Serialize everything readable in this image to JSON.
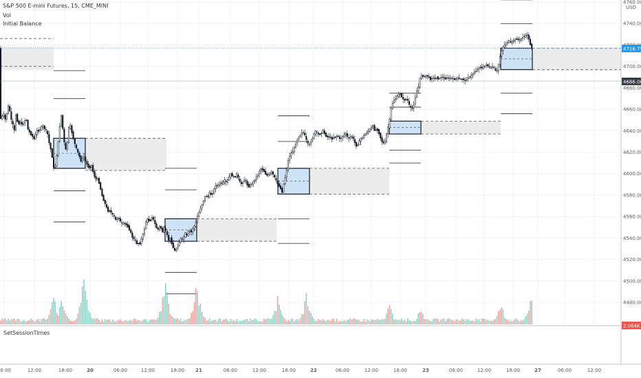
{
  "legend": {
    "symbol_line": "S&P 500 E-mini Futures, 15, CME_MINI",
    "vol_label": "Vol",
    "indicator_label": "Initial Balance"
  },
  "lower_pane": {
    "label": "SetSessionTimes"
  },
  "price_axis": {
    "currency": "USD",
    "ticks": [
      "4760.00",
      "4740.00",
      "4720.00",
      "4700.00",
      "4680.00",
      "4660.00",
      "4640.00",
      "4620.00",
      "4600.00",
      "4580.00",
      "4560.00",
      "4540.00",
      "4520.00",
      "4500.00",
      "4480.00"
    ],
    "last_price_label": "4716.75",
    "crosshair_price_label": "4686.00",
    "lower_badge": "2.064K"
  },
  "time_axis": {
    "ticks": [
      "06:00",
      "12:00",
      "18:00",
      "20",
      "06:00",
      "12:00",
      "18:00",
      "21",
      "06:00",
      "12:00",
      "18:00",
      "22",
      "06:00",
      "12:00",
      "18:00",
      "23",
      "06:00",
      "12:00",
      "18:00",
      "27",
      "06:00",
      "12:00"
    ]
  },
  "colors": {
    "candle": "#131722",
    "ib_box_fill": "#cfe3f7",
    "ib_box_border": "#131722",
    "projection_fill": "#ececec",
    "vol_up": "#8fd3c8",
    "vol_down": "#f4a3a0",
    "last_price_line": "#2196f3",
    "badge_blue": "#2196f3",
    "badge_dark": "#363a45",
    "badge_red": "#ef5350"
  },
  "chart_data": {
    "type": "candlestick",
    "series_description": "15-minute price path (approximate closes) with volume histogram",
    "ylim": [
      4478,
      4765
    ],
    "price_path": [
      [
        0,
        4650
      ],
      [
        3,
        4652
      ],
      [
        6,
        4656
      ],
      [
        9,
        4650
      ],
      [
        12,
        4660
      ],
      [
        14,
        4665
      ],
      [
        16,
        4655
      ],
      [
        18,
        4648
      ],
      [
        20,
        4645
      ],
      [
        22,
        4640
      ],
      [
        24,
        4655
      ],
      [
        26,
        4650
      ],
      [
        28,
        4645
      ],
      [
        30,
        4650
      ],
      [
        33,
        4645
      ],
      [
        36,
        4648
      ],
      [
        39,
        4652
      ],
      [
        42,
        4640
      ],
      [
        45,
        4638
      ],
      [
        48,
        4635
      ],
      [
        51,
        4632
      ],
      [
        54,
        4640
      ],
      [
        57,
        4640
      ],
      [
        60,
        4642
      ],
      [
        63,
        4645
      ],
      [
        66,
        4642
      ],
      [
        70,
        4638
      ],
      [
        72,
        4630
      ],
      [
        75,
        4622
      ],
      [
        78,
        4612
      ],
      [
        80,
        4600
      ],
      [
        83,
        4615
      ],
      [
        85,
        4625
      ],
      [
        88,
        4645
      ],
      [
        90,
        4655
      ],
      [
        93,
        4638
      ],
      [
        96,
        4620
      ],
      [
        99,
        4630
      ],
      [
        102,
        4648
      ],
      [
        105,
        4640
      ],
      [
        108,
        4632
      ],
      [
        111,
        4625
      ],
      [
        114,
        4620
      ],
      [
        117,
        4615
      ],
      [
        120,
        4610
      ],
      [
        122,
        4618
      ],
      [
        125,
        4612
      ],
      [
        128,
        4608
      ],
      [
        131,
        4605
      ],
      [
        134,
        4608
      ],
      [
        137,
        4600
      ],
      [
        140,
        4595
      ],
      [
        143,
        4595
      ],
      [
        146,
        4590
      ],
      [
        149,
        4580
      ],
      [
        152,
        4575
      ],
      [
        155,
        4570
      ],
      [
        158,
        4565
      ],
      [
        161,
        4566
      ],
      [
        164,
        4562
      ],
      [
        167,
        4560
      ],
      [
        170,
        4556
      ],
      [
        173,
        4560
      ],
      [
        176,
        4555
      ],
      [
        179,
        4553
      ],
      [
        182,
        4554
      ],
      [
        185,
        4552
      ],
      [
        188,
        4550
      ],
      [
        191,
        4545
      ],
      [
        194,
        4540
      ],
      [
        197,
        4538
      ],
      [
        200,
        4535
      ],
      [
        203,
        4535
      ],
      [
        205,
        4535
      ],
      [
        207,
        4540
      ],
      [
        210,
        4545
      ],
      [
        213,
        4555
      ],
      [
        216,
        4558
      ],
      [
        219,
        4555
      ],
      [
        222,
        4560
      ],
      [
        225,
        4556
      ],
      [
        228,
        4550
      ],
      [
        231,
        4548
      ],
      [
        234,
        4552
      ],
      [
        237,
        4545
      ],
      [
        240,
        4550
      ],
      [
        243,
        4545
      ],
      [
        246,
        4538
      ],
      [
        249,
        4540
      ],
      [
        252,
        4532
      ],
      [
        255,
        4528
      ],
      [
        258,
        4530
      ],
      [
        261,
        4535
      ],
      [
        264,
        4540
      ],
      [
        267,
        4538
      ],
      [
        270,
        4545
      ],
      [
        273,
        4542
      ],
      [
        276,
        4548
      ],
      [
        279,
        4545
      ],
      [
        282,
        4550
      ],
      [
        285,
        4552
      ],
      [
        288,
        4560
      ],
      [
        291,
        4565
      ],
      [
        294,
        4570
      ],
      [
        297,
        4575
      ],
      [
        300,
        4580
      ],
      [
        303,
        4578
      ],
      [
        306,
        4582
      ],
      [
        309,
        4580
      ],
      [
        312,
        4585
      ],
      [
        315,
        4590
      ],
      [
        318,
        4588
      ],
      [
        321,
        4592
      ],
      [
        324,
        4590
      ],
      [
        327,
        4594
      ],
      [
        330,
        4592
      ],
      [
        333,
        4595
      ],
      [
        336,
        4600
      ],
      [
        339,
        4598
      ],
      [
        342,
        4596
      ],
      [
        345,
        4600
      ],
      [
        348,
        4595
      ],
      [
        351,
        4590
      ],
      [
        354,
        4592
      ],
      [
        357,
        4595
      ],
      [
        360,
        4590
      ],
      [
        363,
        4588
      ],
      [
        366,
        4590
      ],
      [
        369,
        4592
      ],
      [
        372,
        4595
      ],
      [
        375,
        4598
      ],
      [
        378,
        4602
      ],
      [
        381,
        4605
      ],
      [
        384,
        4603
      ],
      [
        387,
        4600
      ],
      [
        390,
        4598
      ],
      [
        393,
        4600
      ],
      [
        396,
        4602
      ],
      [
        399,
        4598
      ],
      [
        402,
        4594
      ],
      [
        405,
        4590
      ],
      [
        408,
        4588
      ],
      [
        411,
        4582
      ],
      [
        414,
        4592
      ],
      [
        417,
        4600
      ],
      [
        420,
        4612
      ],
      [
        423,
        4618
      ],
      [
        426,
        4620
      ],
      [
        429,
        4624
      ],
      [
        432,
        4630
      ],
      [
        435,
        4634
      ],
      [
        438,
        4636
      ],
      [
        441,
        4640
      ],
      [
        444,
        4636
      ],
      [
        447,
        4630
      ],
      [
        450,
        4626
      ],
      [
        453,
        4630
      ],
      [
        456,
        4634
      ],
      [
        459,
        4640
      ],
      [
        462,
        4638
      ],
      [
        465,
        4636
      ],
      [
        468,
        4638
      ],
      [
        471,
        4640
      ],
      [
        474,
        4636
      ],
      [
        477,
        4634
      ],
      [
        480,
        4635
      ],
      [
        483,
        4632
      ],
      [
        486,
        4634
      ],
      [
        489,
        4634
      ],
      [
        492,
        4636
      ],
      [
        495,
        4632
      ],
      [
        498,
        4634
      ],
      [
        501,
        4636
      ],
      [
        504,
        4638
      ],
      [
        507,
        4632
      ],
      [
        510,
        4634
      ],
      [
        513,
        4635
      ],
      [
        516,
        4630
      ],
      [
        519,
        4626
      ],
      [
        522,
        4628
      ],
      [
        525,
        4632
      ],
      [
        528,
        4634
      ],
      [
        531,
        4636
      ],
      [
        534,
        4638
      ],
      [
        537,
        4640
      ],
      [
        540,
        4642
      ],
      [
        543,
        4645
      ],
      [
        546,
        4640
      ],
      [
        549,
        4642
      ],
      [
        552,
        4638
      ],
      [
        555,
        4632
      ],
      [
        558,
        4628
      ],
      [
        561,
        4630
      ],
      [
        564,
        4640
      ],
      [
        567,
        4648
      ],
      [
        570,
        4662
      ],
      [
        573,
        4668
      ],
      [
        576,
        4670
      ],
      [
        579,
        4672
      ],
      [
        582,
        4675
      ],
      [
        585,
        4672
      ],
      [
        588,
        4668
      ],
      [
        591,
        4670
      ],
      [
        594,
        4668
      ],
      [
        597,
        4662
      ],
      [
        600,
        4660
      ],
      [
        603,
        4665
      ],
      [
        606,
        4675
      ],
      [
        609,
        4680
      ],
      [
        612,
        4690
      ],
      [
        615,
        4692
      ],
      [
        618,
        4690
      ],
      [
        621,
        4692
      ],
      [
        624,
        4690
      ],
      [
        627,
        4688
      ],
      [
        630,
        4690
      ],
      [
        633,
        4688
      ],
      [
        636,
        4690
      ],
      [
        639,
        4688
      ],
      [
        642,
        4690
      ],
      [
        645,
        4690
      ],
      [
        648,
        4688
      ],
      [
        651,
        4690
      ],
      [
        654,
        4688
      ],
      [
        657,
        4690
      ],
      [
        660,
        4688
      ],
      [
        663,
        4688
      ],
      [
        666,
        4690
      ],
      [
        669,
        4688
      ],
      [
        672,
        4688
      ],
      [
        675,
        4688
      ],
      [
        678,
        4686
      ],
      [
        681,
        4690
      ],
      [
        684,
        4690
      ],
      [
        687,
        4692
      ],
      [
        690,
        4694
      ],
      [
        693,
        4696
      ],
      [
        696,
        4698
      ],
      [
        699,
        4700
      ],
      [
        702,
        4698
      ],
      [
        705,
        4700
      ],
      [
        708,
        4702
      ],
      [
        711,
        4700
      ],
      [
        714,
        4698
      ],
      [
        717,
        4700
      ],
      [
        720,
        4698
      ],
      [
        723,
        4694
      ],
      [
        726,
        4702
      ],
      [
        729,
        4712
      ],
      [
        732,
        4718
      ],
      [
        735,
        4720
      ],
      [
        738,
        4722
      ],
      [
        741,
        4724
      ],
      [
        744,
        4722
      ],
      [
        747,
        4724
      ],
      [
        750,
        4725
      ],
      [
        753,
        4726
      ],
      [
        756,
        4724
      ],
      [
        759,
        4726
      ],
      [
        762,
        4728
      ],
      [
        765,
        4728
      ],
      [
        768,
        4730
      ],
      [
        771,
        4722
      ],
      [
        774,
        4718
      ],
      [
        776,
        4717
      ]
    ],
    "initial_balance_sessions": [
      {
        "box_high": 4633,
        "box_low": 4605,
        "upper_extension": 4646,
        "lower_extension": 4595,
        "projection_high": 4633,
        "projection_low": 4603,
        "top_lines": [
          4670,
          4696
        ],
        "bottom_lines": [
          4584,
          4555
        ]
      },
      {
        "box_high": 4558,
        "box_low": 4537,
        "upper_extension": 4585,
        "lower_extension": 4510,
        "projection_high": 4558,
        "projection_low": 4537,
        "top_lines": [
          4605,
          4585
        ],
        "bottom_lines": [
          4508,
          4488
        ]
      },
      {
        "box_high": 4605,
        "box_low": 4581,
        "upper_extension": 4635,
        "lower_extension": 4560,
        "projection_high": 4605,
        "projection_low": 4581,
        "top_lines": [
          4654,
          4630
        ],
        "bottom_lines": [
          4558,
          4535
        ]
      },
      {
        "box_high": 4649,
        "box_low": 4637,
        "upper_extension": 4660,
        "lower_extension": 4622,
        "projection_high": 4649,
        "projection_low": 4637,
        "top_lines": [
          4675,
          4662
        ],
        "bottom_lines": [
          4622,
          4610
        ]
      },
      {
        "box_high": 4717,
        "box_low": 4697,
        "upper_extension": 4740,
        "lower_extension": 4675,
        "projection_high": 4717,
        "projection_low": 4697,
        "top_lines": [
          4762,
          4740
        ],
        "bottom_lines": [
          4675,
          4656
        ]
      }
    ],
    "volume_spikes_relative": [
      0.85,
      1.0,
      0.55,
      0.6,
      0.5,
      0.35,
      0.45,
      0.55,
      0.65
    ]
  }
}
